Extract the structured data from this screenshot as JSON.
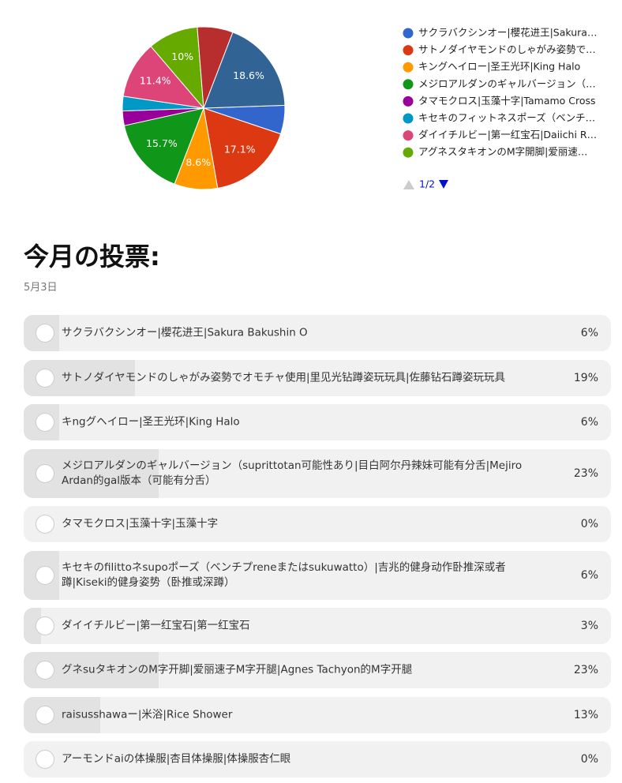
{
  "chart_data": {
    "type": "pie",
    "categories": [
      "サクラバクシンオー|櫻花进王|Sakura…",
      "サトノダイヤモンドのしゃがみ姿勢で…",
      "キングヘイロー|圣王光环|King Halo",
      "メジロアルダンのギャルバージョン（…",
      "タマモクロス|玉藻十字|Tamamo Cross",
      "キセキのフィットネスポーズ（ベンチ…",
      "ダイイチルビー|第一红宝石|Daiichi R…",
      "アグネスタキオンのM字開脚|爱丽速…",
      null,
      null
    ],
    "values": [
      5.7,
      17.1,
      8.6,
      15.7,
      2.9,
      2.9,
      11.4,
      10,
      7.1,
      18.6
    ],
    "value_labels": [
      null,
      "17.1%",
      "8.6%",
      "15.7%",
      null,
      null,
      "11.4%",
      "10%",
      null,
      "18.6%"
    ],
    "colors": [
      "#3366cc",
      "#dc3912",
      "#ff9900",
      "#109618",
      "#990099",
      "#0099c6",
      "#dd4477",
      "#66aa00",
      "#b82e2e",
      "#316395"
    ],
    "legend_page": "1/2"
  },
  "poll": {
    "title": "今月の投票:",
    "date": "5月3日",
    "options": [
      {
        "text": "サクラバクシンオー|櫻花进王|Sakura Bakushin O",
        "percent": 6,
        "percent_label": "6%"
      },
      {
        "text": "サトノダイヤモンドのしゃがみ姿勢でオモチャ使用|里见光钻蹲姿玩玩具|佐藤钻石蹲姿玩玩具",
        "percent": 19,
        "percent_label": "19%"
      },
      {
        "text": "キngグヘイロー|圣王光环|King Halo",
        "percent": 6,
        "percent_label": "6%"
      },
      {
        "text": "メジロアルダンのギャルバージョン（suprittotan可能性あり|目白阿尔丹辣妹可能有分舌|Mejiro Ardan的gal版本（可能有分舌）",
        "percent": 23,
        "percent_label": "23%"
      },
      {
        "text": "タマモクロス|玉藻十字|玉藻十字",
        "percent": 0,
        "percent_label": "0%"
      },
      {
        "text": "キセキのfilittoネsupoポーズ（ベンチプreneまたはsukuwatto）|吉兆的健身动作卧推深或者蹲|Kiseki的健身姿势（卧推或深蹲）",
        "percent": 6,
        "percent_label": "6%"
      },
      {
        "text": "ダイイチルビー|第一红宝石|第一红宝石",
        "percent": 3,
        "percent_label": "3%"
      },
      {
        "text": "グネsuタキオンのM字开脚|爱丽速子M字开腿|Agnes Tachyon的M字开腿",
        "percent": 23,
        "percent_label": "23%"
      },
      {
        "text": "raisusshawaー|米浴|Rice Shower",
        "percent": 13,
        "percent_label": "13%"
      },
      {
        "text": "アーモンドaiの体操服|杏目体操服|体操服杏仁眼",
        "percent": 0,
        "percent_label": "0%"
      }
    ]
  }
}
